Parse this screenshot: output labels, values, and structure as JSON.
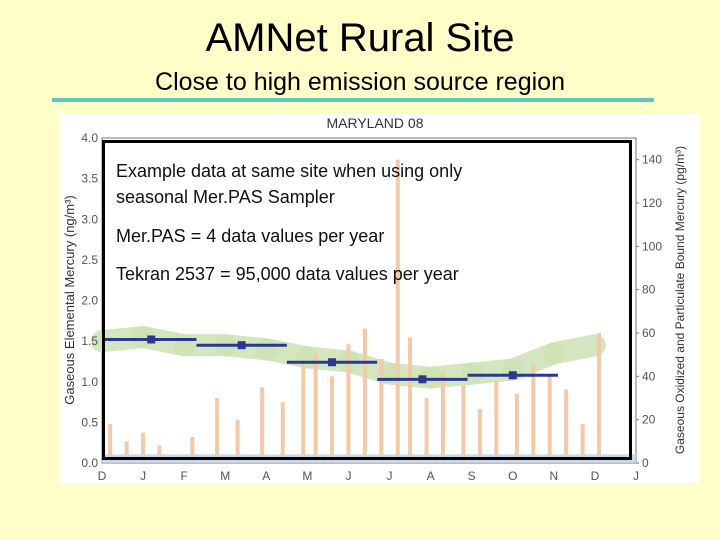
{
  "slide": {
    "title": "AMNet Rural Site",
    "subtitle": "Close to high emission source region"
  },
  "notes": {
    "line1": "Example data at same site when using only",
    "line2": "seasonal Mer.PAS Sampler",
    "line3": "Mer.PAS = 4 data values per year",
    "line4": "Tekran 2537 = 95,000 data values per year"
  },
  "colors": {
    "background": "#fffec8",
    "rule": "#5fc8c1",
    "gem_series": "#cde2b4",
    "gom_pbm_series": "#f4c9a8",
    "low_series": "#c7d5e6",
    "merpas_series": "#2b3890"
  },
  "chart_data": {
    "type": "line",
    "title": "MARYLAND 08",
    "ylabel_left": "Gaseous Elemental Mercury (ng/m³)",
    "ylabel_right": "Gaseous Oxidized and Particulate Bound Mercury (pg/m³)",
    "x_tick_labels": [
      "D",
      "J",
      "F",
      "M",
      "A",
      "M",
      "J",
      "J",
      "A",
      "S",
      "O",
      "N",
      "D",
      "J"
    ],
    "y_left_ticks": [
      "0.0",
      "0.5",
      "1.0",
      "1.5",
      "2.0",
      "2.5",
      "3.0",
      "3.5",
      "4.0"
    ],
    "y_left_range": [
      0,
      4.0
    ],
    "y_right_ticks": [
      "0",
      "20",
      "40",
      "60",
      "80",
      "100",
      "120",
      "140"
    ],
    "y_right_range": [
      0,
      150
    ],
    "merpas_series": [
      {
        "x_start_month": 0,
        "x_end_month": 2.3,
        "x_marker_month": 1.2,
        "value": 1.52
      },
      {
        "x_start_month": 2.3,
        "x_end_month": 4.5,
        "x_marker_month": 3.4,
        "value": 1.45
      },
      {
        "x_start_month": 4.5,
        "x_end_month": 6.7,
        "x_marker_month": 5.6,
        "value": 1.24
      },
      {
        "x_start_month": 6.7,
        "x_end_month": 8.9,
        "x_marker_month": 7.8,
        "value": 1.03
      },
      {
        "x_start_month": 8.9,
        "x_end_month": 11.1,
        "x_marker_month": 10.0,
        "value": 1.08
      }
    ],
    "gem_band": [
      {
        "month": 0,
        "value": 1.5
      },
      {
        "month": 1,
        "value": 1.55
      },
      {
        "month": 2,
        "value": 1.45
      },
      {
        "month": 3,
        "value": 1.45
      },
      {
        "month": 4,
        "value": 1.4
      },
      {
        "month": 5,
        "value": 1.3
      },
      {
        "month": 6,
        "value": 1.25
      },
      {
        "month": 7,
        "value": 1.1
      },
      {
        "month": 8,
        "value": 1.05
      },
      {
        "month": 9,
        "value": 1.1
      },
      {
        "month": 10,
        "value": 1.15
      },
      {
        "month": 11,
        "value": 1.35
      },
      {
        "month": 12,
        "value": 1.45
      }
    ],
    "gom_pbm_spikes": [
      {
        "month": 0.2,
        "value": 18
      },
      {
        "month": 0.6,
        "value": 10
      },
      {
        "month": 1.0,
        "value": 14
      },
      {
        "month": 1.4,
        "value": 8
      },
      {
        "month": 2.2,
        "value": 12
      },
      {
        "month": 2.8,
        "value": 30
      },
      {
        "month": 3.3,
        "value": 20
      },
      {
        "month": 3.9,
        "value": 35
      },
      {
        "month": 4.4,
        "value": 28
      },
      {
        "month": 4.9,
        "value": 45
      },
      {
        "month": 5.2,
        "value": 50
      },
      {
        "month": 5.6,
        "value": 40
      },
      {
        "month": 6.0,
        "value": 55
      },
      {
        "month": 6.4,
        "value": 62
      },
      {
        "month": 6.8,
        "value": 48
      },
      {
        "month": 7.2,
        "value": 140
      },
      {
        "month": 7.5,
        "value": 58
      },
      {
        "month": 7.9,
        "value": 30
      },
      {
        "month": 8.3,
        "value": 42
      },
      {
        "month": 8.8,
        "value": 36
      },
      {
        "month": 9.2,
        "value": 25
      },
      {
        "month": 9.6,
        "value": 38
      },
      {
        "month": 10.1,
        "value": 32
      },
      {
        "month": 10.5,
        "value": 46
      },
      {
        "month": 10.9,
        "value": 40
      },
      {
        "month": 11.3,
        "value": 34
      },
      {
        "month": 11.7,
        "value": 18
      },
      {
        "month": 12.1,
        "value": 60
      }
    ]
  }
}
